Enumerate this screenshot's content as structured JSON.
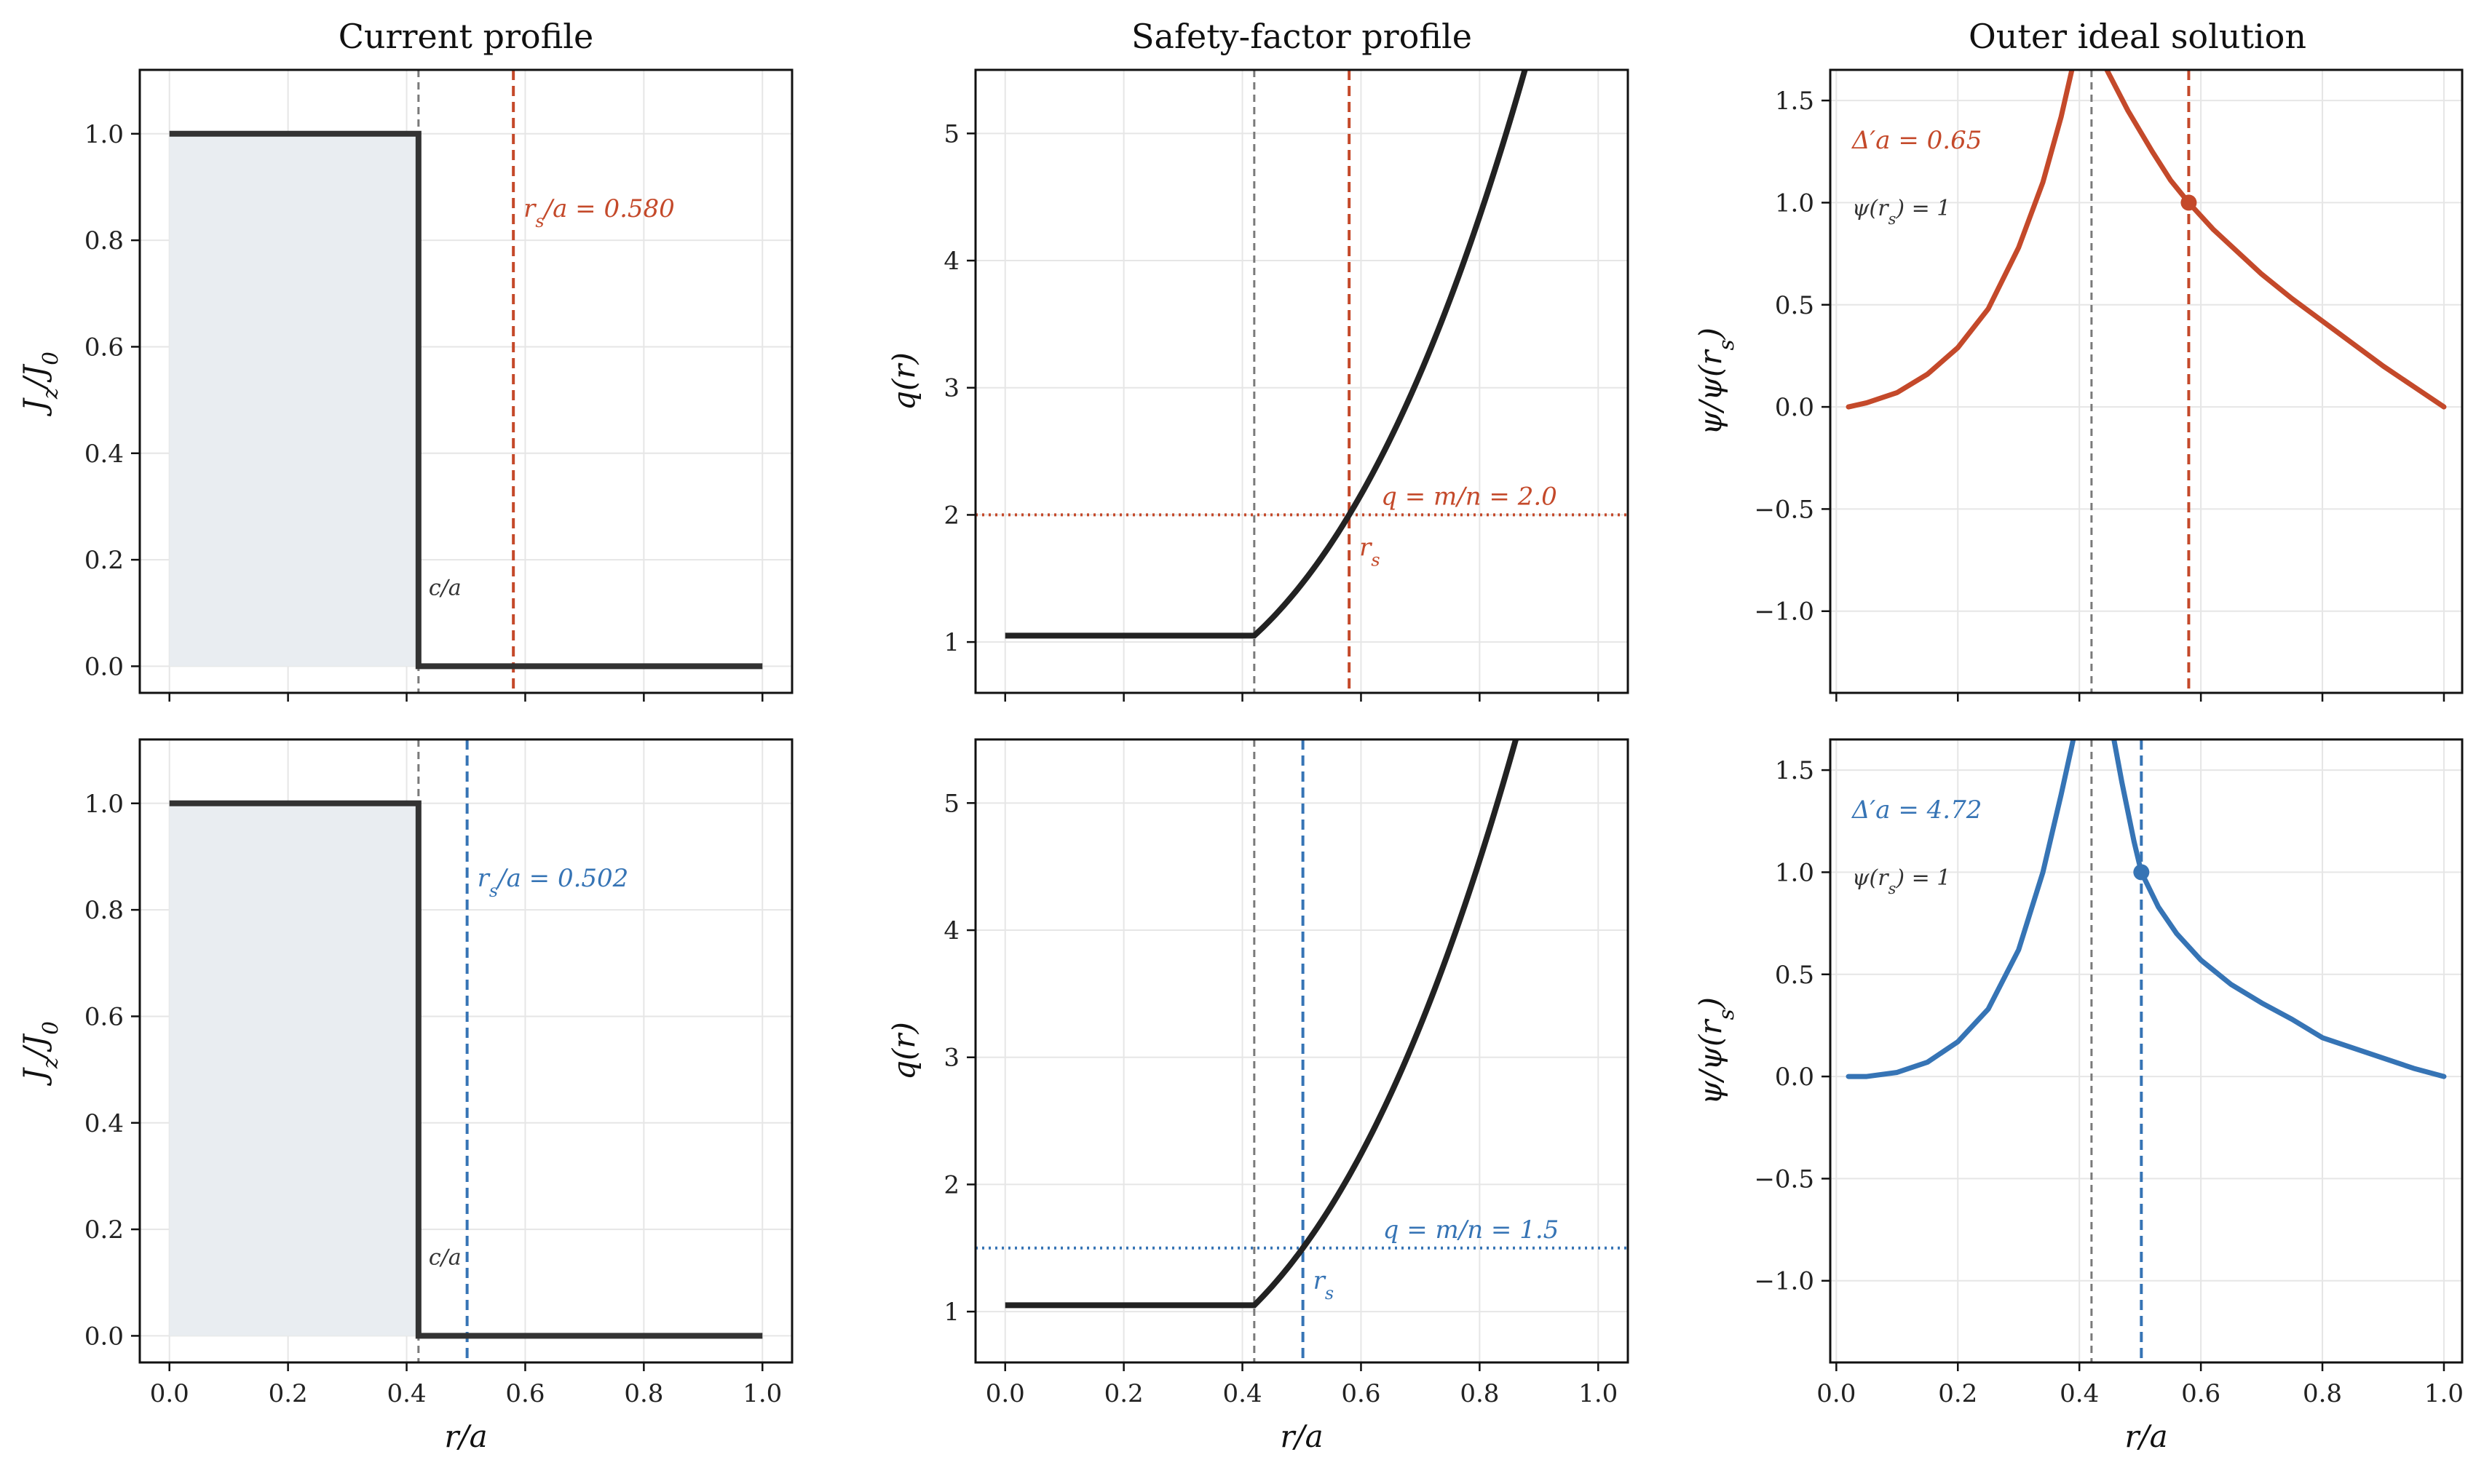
{
  "colors": {
    "red": "#c4492a",
    "blue": "#3674b5",
    "dark": "#222222",
    "grey": "#7a7a7a",
    "fill": "#e9edf1"
  },
  "column_titles": [
    "Current profile",
    "Safety-factor profile",
    "Outer ideal solution"
  ],
  "chart_data": [
    {
      "type": "line",
      "row": 0,
      "col": 0,
      "title": "Current profile",
      "ylabel": "J_z/J_0",
      "xlabel": "",
      "xlim": [
        -0.05,
        1.05
      ],
      "ylim": [
        -0.05,
        1.12
      ],
      "xticks": [
        0.0,
        0.2,
        0.4,
        0.6,
        0.8,
        1.0
      ],
      "xtick_labels": [
        "",
        "",
        "",
        "",
        "",
        ""
      ],
      "yticks": [
        0.0,
        0.2,
        0.4,
        0.6,
        0.8,
        1.0
      ],
      "ytick_labels": [
        "0.0",
        "0.2",
        "0.4",
        "0.6",
        "0.8",
        "1.0"
      ],
      "c_over_a": 0.42,
      "c_label": "c/a",
      "series": [
        {
          "x": [
            0.0,
            0.42,
            0.42,
            1.0
          ],
          "y": [
            1.0,
            1.0,
            0.0,
            0.0
          ]
        }
      ],
      "vline": {
        "x": 0.58,
        "color": "red"
      },
      "annotation": "r_s/a = 0.580",
      "grid": true
    },
    {
      "type": "line",
      "row": 0,
      "col": 1,
      "title": "Safety-factor profile",
      "ylabel": "q(r)",
      "xlabel": "",
      "xlim": [
        -0.05,
        1.05
      ],
      "ylim": [
        0.6,
        5.5
      ],
      "xticks": [
        0.0,
        0.2,
        0.4,
        0.6,
        0.8,
        1.0
      ],
      "xtick_labels": [
        "",
        "",
        "",
        "",
        "",
        ""
      ],
      "yticks": [
        1,
        2,
        3,
        4,
        5
      ],
      "ytick_labels": [
        "1",
        "2",
        "3",
        "4",
        "5"
      ],
      "c_over_a": 0.42,
      "q0": 1.05,
      "rs": 0.58,
      "series": [
        {
          "x": [
            0.0,
            0.42,
            0.5,
            0.58,
            0.7,
            0.8,
            0.9,
            0.96
          ],
          "y": [
            1.05,
            1.05,
            1.49,
            2.0,
            2.91,
            3.8,
            4.79,
            5.5
          ]
        }
      ],
      "hline": {
        "y": 2.0,
        "color": "red"
      },
      "vline": {
        "x": 0.58,
        "color": "red"
      },
      "annotation": "q = m/n = 2.0",
      "rs_label": "r_s",
      "grid": true
    },
    {
      "type": "line",
      "row": 0,
      "col": 2,
      "title": "Outer ideal solution",
      "ylabel": "ψ/ψ(r_s)",
      "xlabel": "",
      "xlim": [
        -0.01,
        1.03
      ],
      "ylim": [
        -1.4,
        1.65
      ],
      "xticks": [
        0.0,
        0.2,
        0.4,
        0.6,
        0.8,
        1.0
      ],
      "xtick_labels": [
        "",
        "",
        "",
        "",
        "",
        ""
      ],
      "yticks": [
        -1.0,
        -0.5,
        0.0,
        0.5,
        1.0,
        1.5
      ],
      "ytick_labels": [
        "−1.0",
        "−0.5",
        "0.0",
        "0.5",
        "1.0",
        "1.5"
      ],
      "c_over_a": 0.42,
      "rs": 0.58,
      "series": [
        {
          "name": "inner",
          "x": [
            0.02,
            0.05,
            0.1,
            0.15,
            0.2,
            0.25,
            0.3,
            0.34,
            0.37,
            0.39
          ],
          "y": [
            0.0,
            0.02,
            0.07,
            0.16,
            0.29,
            0.48,
            0.78,
            1.1,
            1.42,
            1.68
          ]
        },
        {
          "name": "outer",
          "x": [
            0.44,
            0.48,
            0.52,
            0.55,
            0.58,
            0.62,
            0.66,
            0.7,
            0.75,
            0.8,
            0.85,
            0.9,
            0.95,
            1.0
          ],
          "y": [
            1.68,
            1.45,
            1.25,
            1.11,
            1.0,
            0.87,
            0.76,
            0.65,
            0.53,
            0.42,
            0.31,
            0.2,
            0.1,
            0.0
          ]
        }
      ],
      "vline": {
        "x": 0.58,
        "color": "red"
      },
      "point": {
        "x": 0.58,
        "y": 1.0
      },
      "annotation": "Δ′a = 0.65",
      "note": "ψ(r_s) = 1",
      "grid": true
    },
    {
      "type": "line",
      "row": 1,
      "col": 0,
      "title": "",
      "ylabel": "J_z/J_0",
      "xlabel": "r/a",
      "xlim": [
        -0.05,
        1.05
      ],
      "ylim": [
        -0.05,
        1.12
      ],
      "xticks": [
        0.0,
        0.2,
        0.4,
        0.6,
        0.8,
        1.0
      ],
      "xtick_labels": [
        "0.0",
        "0.2",
        "0.4",
        "0.6",
        "0.8",
        "1.0"
      ],
      "yticks": [
        0.0,
        0.2,
        0.4,
        0.6,
        0.8,
        1.0
      ],
      "ytick_labels": [
        "0.0",
        "0.2",
        "0.4",
        "0.6",
        "0.8",
        "1.0"
      ],
      "c_over_a": 0.42,
      "c_label": "c/a",
      "series": [
        {
          "x": [
            0.0,
            0.42,
            0.42,
            1.0
          ],
          "y": [
            1.0,
            1.0,
            0.0,
            0.0
          ]
        }
      ],
      "vline": {
        "x": 0.502,
        "color": "blue"
      },
      "annotation": "r_s/a = 0.502",
      "grid": true
    },
    {
      "type": "line",
      "row": 1,
      "col": 1,
      "title": "",
      "ylabel": "q(r)",
      "xlabel": "r/a",
      "xlim": [
        -0.05,
        1.05
      ],
      "ylim": [
        0.6,
        5.5
      ],
      "xticks": [
        0.0,
        0.2,
        0.4,
        0.6,
        0.8,
        1.0
      ],
      "xtick_labels": [
        "0.0",
        "0.2",
        "0.4",
        "0.6",
        "0.8",
        "1.0"
      ],
      "yticks": [
        1,
        2,
        3,
        4,
        5
      ],
      "ytick_labels": [
        "1",
        "2",
        "3",
        "4",
        "5"
      ],
      "c_over_a": 0.42,
      "q0": 1.05,
      "rs": 0.502,
      "series": [
        {
          "x": [
            0.0,
            0.42,
            0.502,
            0.6,
            0.7,
            0.8,
            0.9,
            0.96
          ],
          "y": [
            1.05,
            1.05,
            1.5,
            2.11,
            2.91,
            3.8,
            4.79,
            5.5
          ]
        }
      ],
      "hline": {
        "y": 1.5,
        "color": "blue"
      },
      "vline": {
        "x": 0.502,
        "color": "blue"
      },
      "annotation": "q = m/n = 1.5",
      "rs_label": "r_s",
      "grid": true
    },
    {
      "type": "line",
      "row": 1,
      "col": 2,
      "title": "",
      "ylabel": "ψ/ψ(r_s)",
      "xlabel": "r/a",
      "xlim": [
        -0.01,
        1.03
      ],
      "ylim": [
        -1.4,
        1.65
      ],
      "xticks": [
        0.0,
        0.2,
        0.4,
        0.6,
        0.8,
        1.0
      ],
      "xtick_labels": [
        "0.0",
        "0.2",
        "0.4",
        "0.6",
        "0.8",
        "1.0"
      ],
      "yticks": [
        -1.0,
        -0.5,
        0.0,
        0.5,
        1.0,
        1.5
      ],
      "ytick_labels": [
        "−1.0",
        "−0.5",
        "0.0",
        "0.5",
        "1.0",
        "1.5"
      ],
      "c_over_a": 0.42,
      "rs": 0.502,
      "series": [
        {
          "name": "inner",
          "x": [
            0.02,
            0.05,
            0.1,
            0.15,
            0.2,
            0.25,
            0.3,
            0.34,
            0.37,
            0.39
          ],
          "y": [
            0.0,
            0.0,
            0.02,
            0.07,
            0.17,
            0.33,
            0.62,
            1.0,
            1.38,
            1.65
          ]
        },
        {
          "name": "outer",
          "x": [
            0.455,
            0.47,
            0.49,
            0.502,
            0.53,
            0.56,
            0.6,
            0.65,
            0.7,
            0.75,
            0.8,
            0.85,
            0.9,
            0.95,
            1.0
          ],
          "y": [
            1.68,
            1.44,
            1.15,
            1.0,
            0.83,
            0.7,
            0.57,
            0.45,
            0.36,
            0.28,
            0.19,
            0.14,
            0.09,
            0.04,
            0.0
          ]
        }
      ],
      "vline": {
        "x": 0.502,
        "color": "blue"
      },
      "point": {
        "x": 0.502,
        "y": 1.0
      },
      "annotation": "Δ′a = 4.72",
      "note": "ψ(r_s) = 1",
      "grid": true
    }
  ]
}
